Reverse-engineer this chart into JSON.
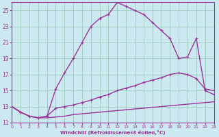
{
  "bg_color": "#cce8f0",
  "grid_color": "#99ccbb",
  "line_color": "#993399",
  "xlabel": "Windchill (Refroidissement éolien,°C)",
  "ylim": [
    11,
    26
  ],
  "xlim": [
    0,
    23
  ],
  "yticks": [
    11,
    13,
    15,
    17,
    19,
    21,
    23,
    25
  ],
  "xticks": [
    0,
    1,
    2,
    3,
    4,
    5,
    6,
    7,
    8,
    9,
    10,
    11,
    12,
    13,
    14,
    15,
    16,
    17,
    18,
    19,
    20,
    21,
    22,
    23
  ],
  "curve1_x": [
    0,
    1,
    2,
    3,
    4,
    5,
    6,
    7,
    8,
    9,
    10,
    11,
    12,
    13,
    14,
    15,
    16,
    17,
    18,
    19,
    20,
    21,
    22,
    23
  ],
  "curve1_y": [
    13.0,
    12.3,
    11.8,
    11.6,
    11.6,
    11.7,
    11.8,
    12.0,
    12.1,
    12.2,
    12.3,
    12.4,
    12.5,
    12.6,
    12.7,
    12.8,
    12.9,
    13.0,
    13.1,
    13.2,
    13.3,
    13.4,
    13.5,
    13.6
  ],
  "curve2_x": [
    0,
    1,
    2,
    3,
    4,
    5,
    6,
    7,
    8,
    9,
    10,
    11,
    12,
    13,
    14,
    15,
    16,
    17,
    18,
    19,
    20,
    21,
    22,
    23
  ],
  "curve2_y": [
    13.0,
    12.3,
    11.8,
    11.6,
    11.8,
    12.8,
    13.0,
    13.2,
    13.5,
    13.8,
    14.2,
    14.5,
    15.0,
    15.3,
    15.6,
    16.0,
    16.3,
    16.6,
    17.0,
    17.2,
    17.0,
    16.5,
    15.2,
    15.0
  ],
  "curve3_x": [
    0,
    1,
    2,
    3,
    4,
    5,
    6,
    7,
    8,
    9,
    10,
    11,
    12,
    13,
    14,
    15,
    16,
    17,
    18,
    19,
    20,
    21,
    22,
    23
  ],
  "curve3_y": [
    13.0,
    12.3,
    11.8,
    11.6,
    11.8,
    15.2,
    17.2,
    19.0,
    21.0,
    23.0,
    24.0,
    24.5,
    26.0,
    25.5,
    25.0,
    24.5,
    23.5,
    22.5,
    21.5,
    19.0,
    19.2,
    21.5,
    15.0,
    14.5
  ]
}
